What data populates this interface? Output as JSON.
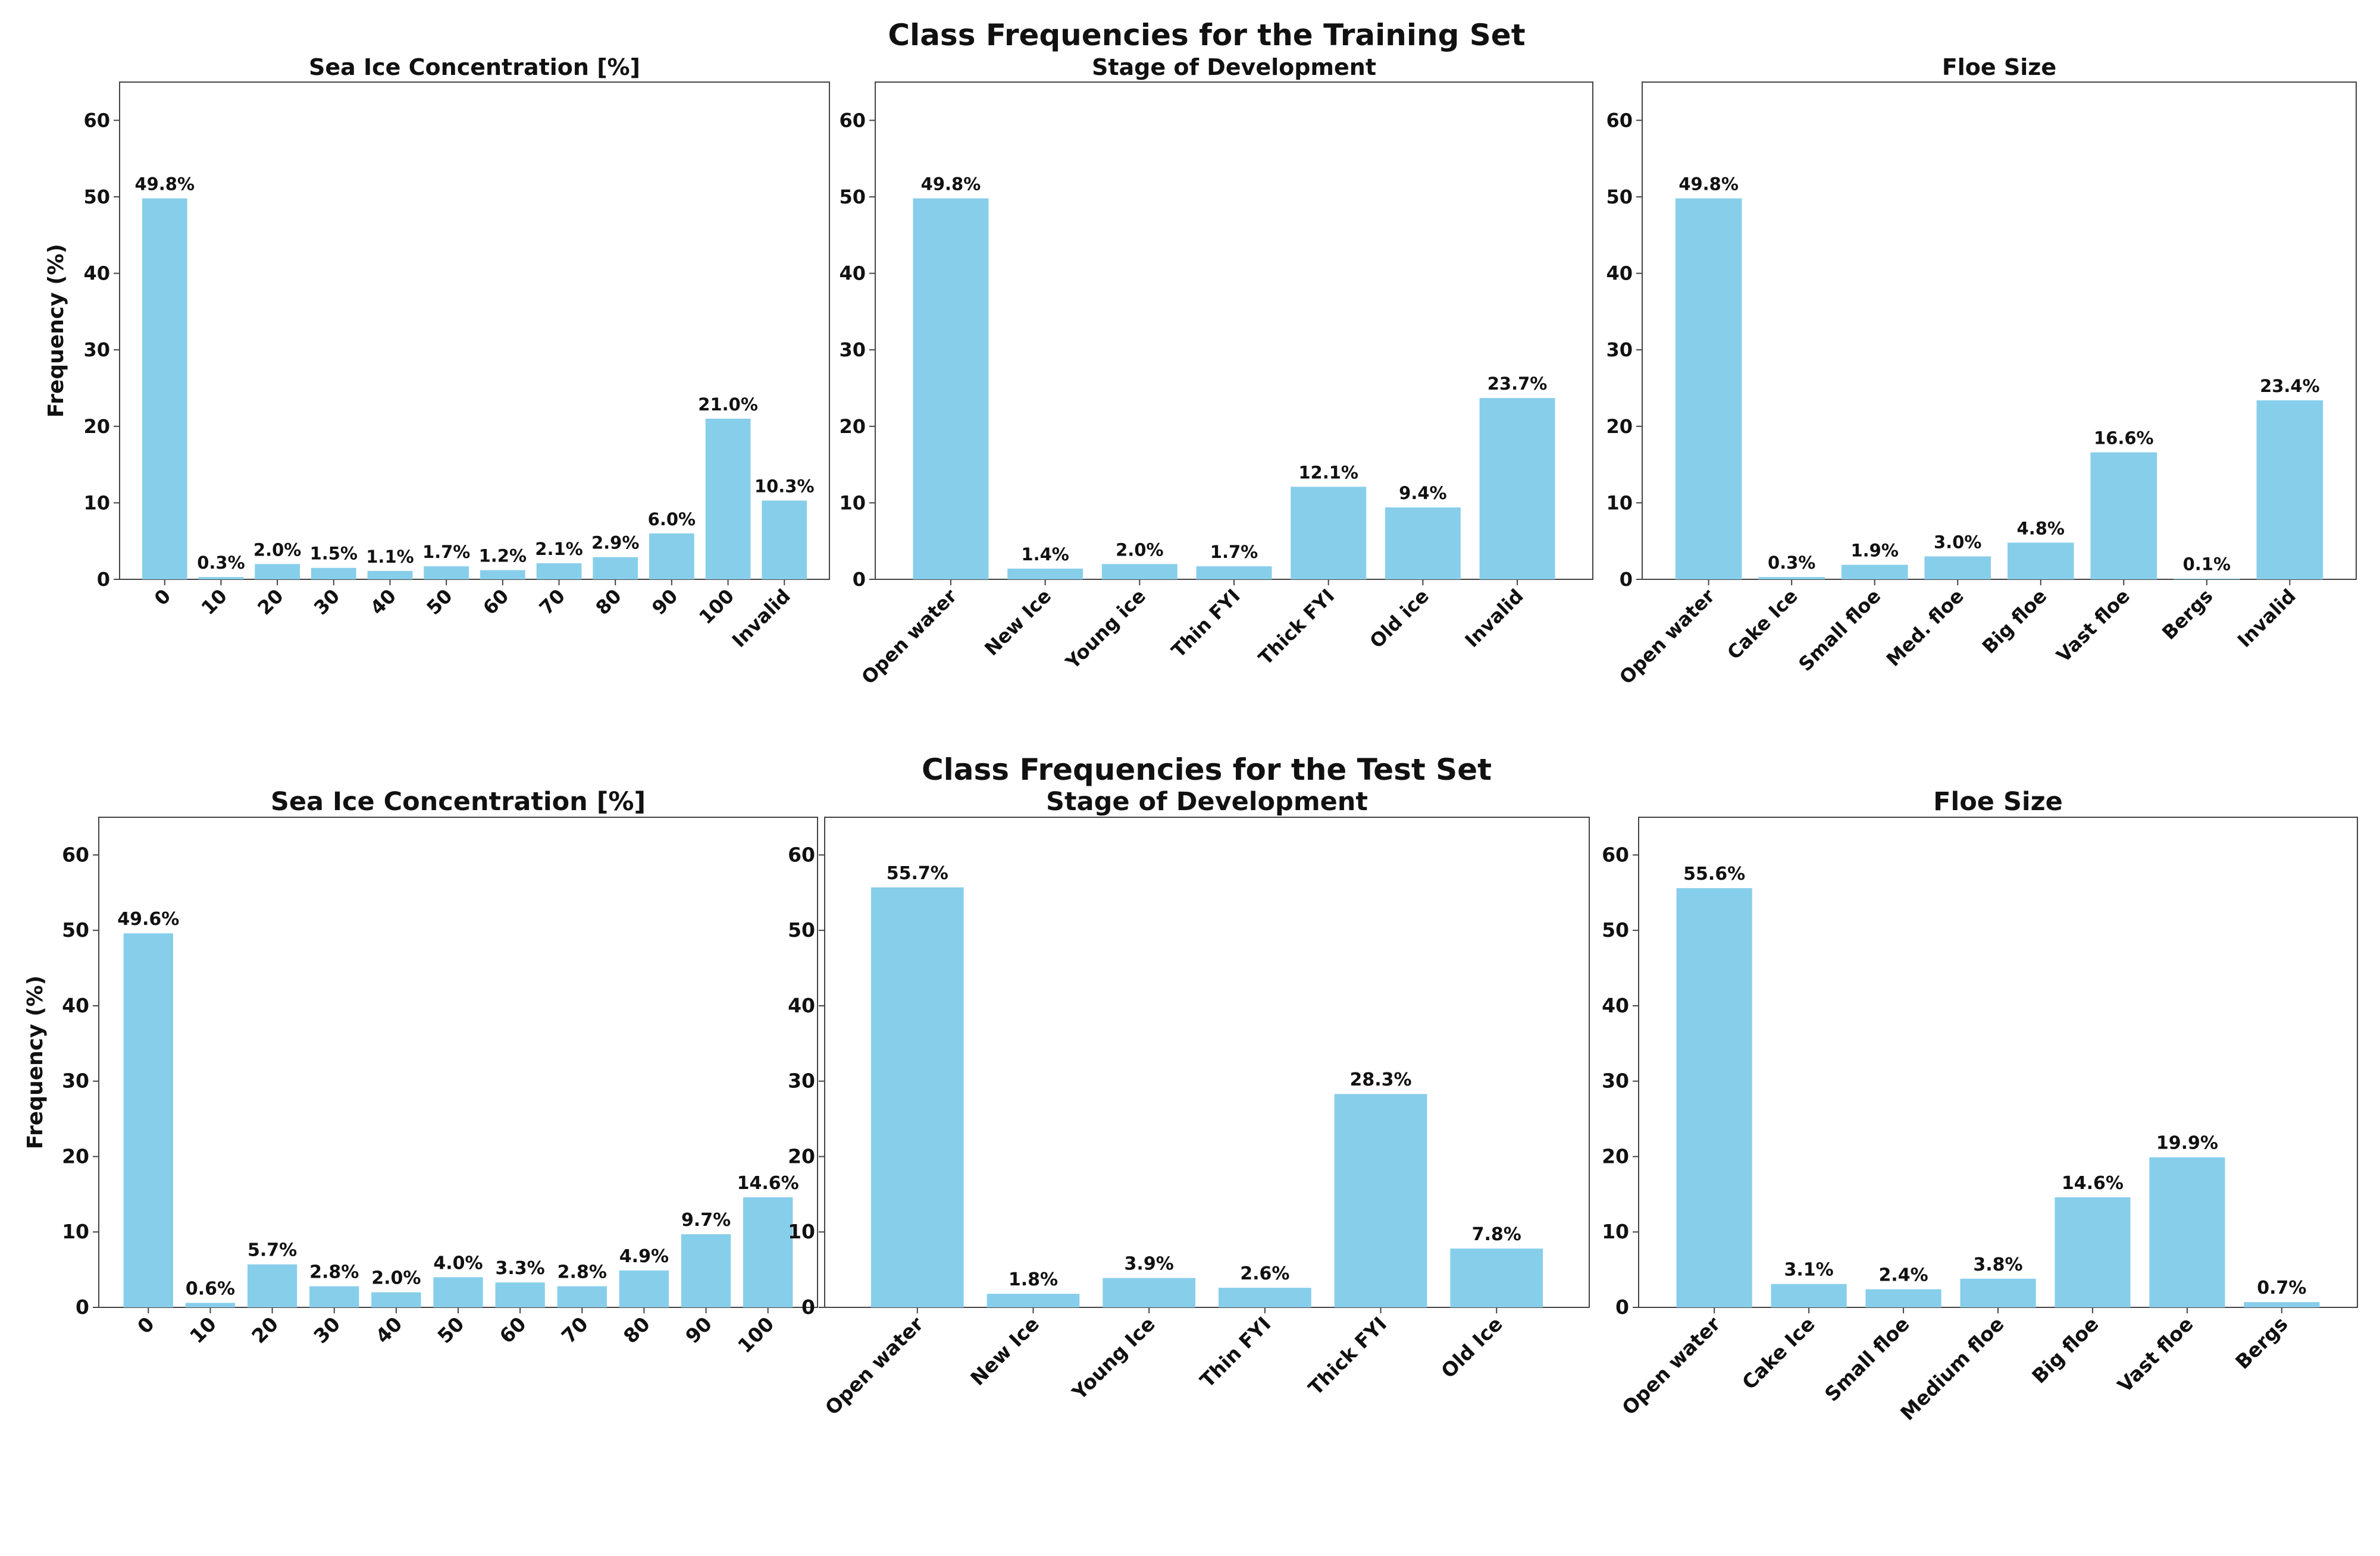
{
  "figure": {
    "colors": {
      "bar": "#87ceeb",
      "axis": "#444444",
      "text": "#111111"
    }
  },
  "sections": [
    {
      "title": "Class Frequencies for the Training Set"
    },
    {
      "title": "Class Frequencies for the Test Set"
    }
  ],
  "chart_data": [
    {
      "type": "bar",
      "title": "Sea Ice Concentration [%]",
      "ylabel": "Frequency (%)",
      "ylim": [
        0,
        65
      ],
      "yticks": [
        0,
        10,
        20,
        30,
        40,
        50,
        60
      ],
      "categories": [
        "0",
        "10",
        "20",
        "30",
        "40",
        "50",
        "60",
        "70",
        "80",
        "90",
        "100",
        "Invalid"
      ],
      "values": [
        49.8,
        0.3,
        2.0,
        1.5,
        1.1,
        1.7,
        1.2,
        2.1,
        2.9,
        6.0,
        21.0,
        10.3
      ],
      "labels": [
        "49.8%",
        "0.3%",
        "2.0%",
        "1.5%",
        "1.1%",
        "1.7%",
        "1.2%",
        "2.1%",
        "2.9%",
        "6.0%",
        "21.0%",
        "10.3%"
      ],
      "grid": false
    },
    {
      "type": "bar",
      "title": "Stage of Development",
      "ylabel": "",
      "ylim": [
        0,
        65
      ],
      "yticks": [
        0,
        10,
        20,
        30,
        40,
        50,
        60
      ],
      "categories": [
        "Open water",
        "New Ice",
        "Young ice",
        "Thin FYI",
        "Thick FYI",
        "Old ice",
        "Invalid"
      ],
      "values": [
        49.8,
        1.4,
        2.0,
        1.7,
        12.1,
        9.4,
        23.7
      ],
      "labels": [
        "49.8%",
        "1.4%",
        "2.0%",
        "1.7%",
        "12.1%",
        "9.4%",
        "23.7%"
      ],
      "grid": false
    },
    {
      "type": "bar",
      "title": "Floe Size",
      "ylabel": "",
      "ylim": [
        0,
        65
      ],
      "yticks": [
        0,
        10,
        20,
        30,
        40,
        50,
        60
      ],
      "categories": [
        "Open water",
        "Cake Ice",
        "Small floe",
        "Med. floe",
        "Big floe",
        "Vast floe",
        "Bergs",
        "Invalid"
      ],
      "values": [
        49.8,
        0.3,
        1.9,
        3.0,
        4.8,
        16.6,
        0.1,
        23.4
      ],
      "labels": [
        "49.8%",
        "0.3%",
        "1.9%",
        "3.0%",
        "4.8%",
        "16.6%",
        "0.1%",
        "23.4%"
      ],
      "grid": false
    },
    {
      "type": "bar",
      "title": "Sea Ice Concentration [%]",
      "ylabel": "Frequency (%)",
      "ylim": [
        0,
        65
      ],
      "yticks": [
        0,
        10,
        20,
        30,
        40,
        50,
        60
      ],
      "categories": [
        "0",
        "10",
        "20",
        "30",
        "40",
        "50",
        "60",
        "70",
        "80",
        "90",
        "100"
      ],
      "values": [
        49.6,
        0.6,
        5.7,
        2.8,
        2.0,
        4.0,
        3.3,
        2.8,
        4.9,
        9.7,
        14.6
      ],
      "labels": [
        "49.6%",
        "0.6%",
        "5.7%",
        "2.8%",
        "2.0%",
        "4.0%",
        "3.3%",
        "2.8%",
        "4.9%",
        "9.7%",
        "14.6%"
      ],
      "grid": false
    },
    {
      "type": "bar",
      "title": "Stage of Development",
      "ylabel": "",
      "ylim": [
        0,
        65
      ],
      "yticks": [
        0,
        10,
        20,
        30,
        40,
        50,
        60
      ],
      "categories": [
        "Open water",
        "New Ice",
        "Young Ice",
        "Thin FYI",
        "Thick FYI",
        "Old Ice"
      ],
      "values": [
        55.7,
        1.8,
        3.9,
        2.6,
        28.3,
        7.8
      ],
      "labels": [
        "55.7%",
        "1.8%",
        "3.9%",
        "2.6%",
        "28.3%",
        "7.8%"
      ],
      "grid": false
    },
    {
      "type": "bar",
      "title": "Floe Size",
      "ylabel": "",
      "ylim": [
        0,
        65
      ],
      "yticks": [
        0,
        10,
        20,
        30,
        40,
        50,
        60
      ],
      "categories": [
        "Open water",
        "Cake Ice",
        "Small floe",
        "Medium floe",
        "Big floe",
        "Vast floe",
        "Bergs"
      ],
      "values": [
        55.6,
        3.1,
        2.4,
        3.8,
        14.6,
        19.9,
        0.7
      ],
      "labels": [
        "55.6%",
        "3.1%",
        "2.4%",
        "3.8%",
        "14.6%",
        "19.9%",
        "0.7%"
      ],
      "grid": false
    }
  ]
}
